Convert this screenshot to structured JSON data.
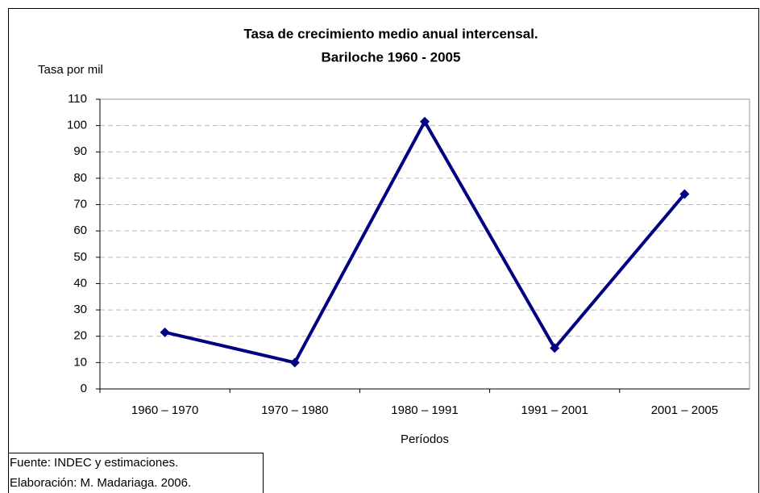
{
  "chart_data": {
    "type": "line",
    "title": [
      "Tasa de crecimiento medio anual intercensal.",
      "Bariloche 1960 - 2005"
    ],
    "y_label": "Tasa por mil",
    "x_label": "Períodos",
    "categories": [
      "1960 – 1970",
      "1970 – 1980",
      "1980 – 1991",
      "1991 – 2001",
      "2001 – 2005"
    ],
    "series": [
      {
        "name": "Tasa",
        "color": "#000080",
        "values": [
          21.5,
          10,
          101.5,
          15.5,
          74
        ]
      }
    ],
    "ylim": [
      0,
      110
    ],
    "yticks": [
      0,
      10,
      20,
      30,
      40,
      50,
      60,
      70,
      80,
      90,
      100,
      110
    ],
    "grid": true,
    "footnote": [
      "Fuente: INDEC y estimaciones.",
      "Elaboración: M. Madariaga. 2006."
    ]
  }
}
